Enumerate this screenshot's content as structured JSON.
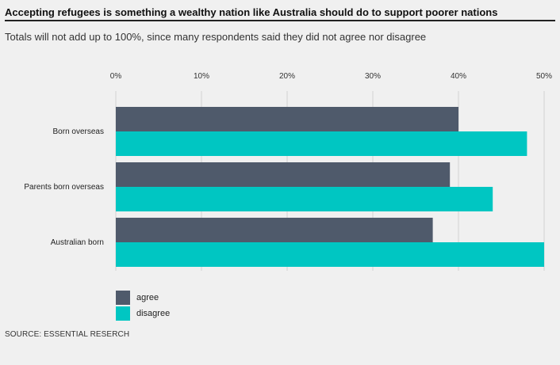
{
  "title": "Accepting refugees is something a wealthy nation like Australia should do to support poorer nations",
  "subtitle": "Totals will not add up to 100%, since many respondents said they did not agree nor disagree",
  "source": "SOURCE: ESSENTIAL RESERCH",
  "chart_data": {
    "type": "bar",
    "orientation": "horizontal",
    "categories": [
      "Born overseas",
      "Parents born overseas",
      "Australian born"
    ],
    "series": [
      {
        "name": "agree",
        "color": "#4f5a6b",
        "values": [
          40,
          39,
          37
        ]
      },
      {
        "name": "disagree",
        "color": "#00c6c2",
        "values": [
          48,
          44,
          50
        ]
      }
    ],
    "xlim": [
      0,
      50
    ],
    "xticks": [
      "0%",
      "10%",
      "20%",
      "30%",
      "40%",
      "50%"
    ],
    "xtick_values": [
      0,
      10,
      20,
      30,
      40,
      50
    ],
    "grid": true,
    "legend_position": "bottom-left"
  }
}
